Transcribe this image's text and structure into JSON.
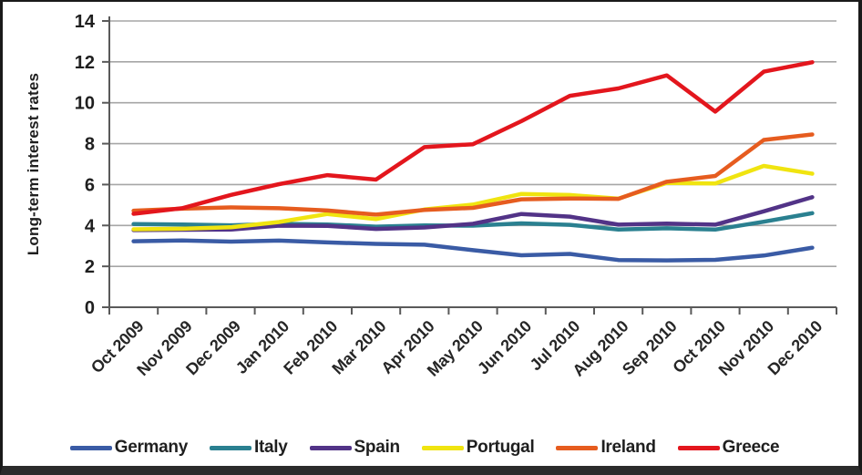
{
  "colors": {
    "background": "#ffffff",
    "grid": "#a6a6a6",
    "axis": "#595959",
    "text": "#1f1f1f",
    "frame": "#1a1a1a"
  },
  "chart_data": {
    "type": "line",
    "title": "",
    "xlabel": "",
    "ylabel": "Long-term interest rates",
    "ylim": [
      0,
      14
    ],
    "yticks": [
      0,
      2,
      4,
      6,
      8,
      10,
      12,
      14
    ],
    "grid": "horizontal",
    "legend_position": "bottom",
    "x_label_rotation_deg": -45,
    "categories": [
      "Oct 2009",
      "Nov 2009",
      "Dec 2009",
      "Jan 2010",
      "Feb 2010",
      "Mar 2010",
      "Apr 2010",
      "May 2010",
      "Jun 2010",
      "Jul 2010",
      "Aug 2010",
      "Sep 2010",
      "Oct 2010",
      "Nov 2010",
      "Dec 2010"
    ],
    "series": [
      {
        "name": "Germany",
        "color": "#3a5ba5",
        "values": [
          3.23,
          3.27,
          3.21,
          3.26,
          3.17,
          3.1,
          3.06,
          2.79,
          2.54,
          2.61,
          2.31,
          2.29,
          2.32,
          2.53,
          2.91
        ]
      },
      {
        "name": "Italy",
        "color": "#2a8090",
        "values": [
          4.07,
          4.05,
          4.01,
          4.08,
          4.05,
          3.94,
          4.0,
          3.99,
          4.1,
          4.03,
          3.8,
          3.86,
          3.8,
          4.18,
          4.6
        ]
      },
      {
        "name": "Spain",
        "color": "#523387",
        "values": [
          3.77,
          3.79,
          3.8,
          3.99,
          3.98,
          3.83,
          3.9,
          4.08,
          4.56,
          4.43,
          4.04,
          4.09,
          4.04,
          4.69,
          5.38
        ]
      },
      {
        "name": "Portugal",
        "color": "#f0e410",
        "values": [
          3.81,
          3.84,
          3.91,
          4.17,
          4.56,
          4.31,
          4.78,
          5.02,
          5.54,
          5.49,
          5.31,
          6.08,
          6.05,
          6.91,
          6.53
        ]
      },
      {
        "name": "Ireland",
        "color": "#e65c1f",
        "values": [
          4.72,
          4.82,
          4.88,
          4.84,
          4.73,
          4.53,
          4.76,
          4.86,
          5.28,
          5.32,
          5.3,
          6.14,
          6.42,
          8.18,
          8.45
        ]
      },
      {
        "name": "Greece",
        "color": "#e3161d",
        "values": [
          4.57,
          4.84,
          5.49,
          6.02,
          6.46,
          6.24,
          7.83,
          7.97,
          9.1,
          10.34,
          10.7,
          11.34,
          9.57,
          11.52,
          11.98
        ]
      }
    ]
  }
}
